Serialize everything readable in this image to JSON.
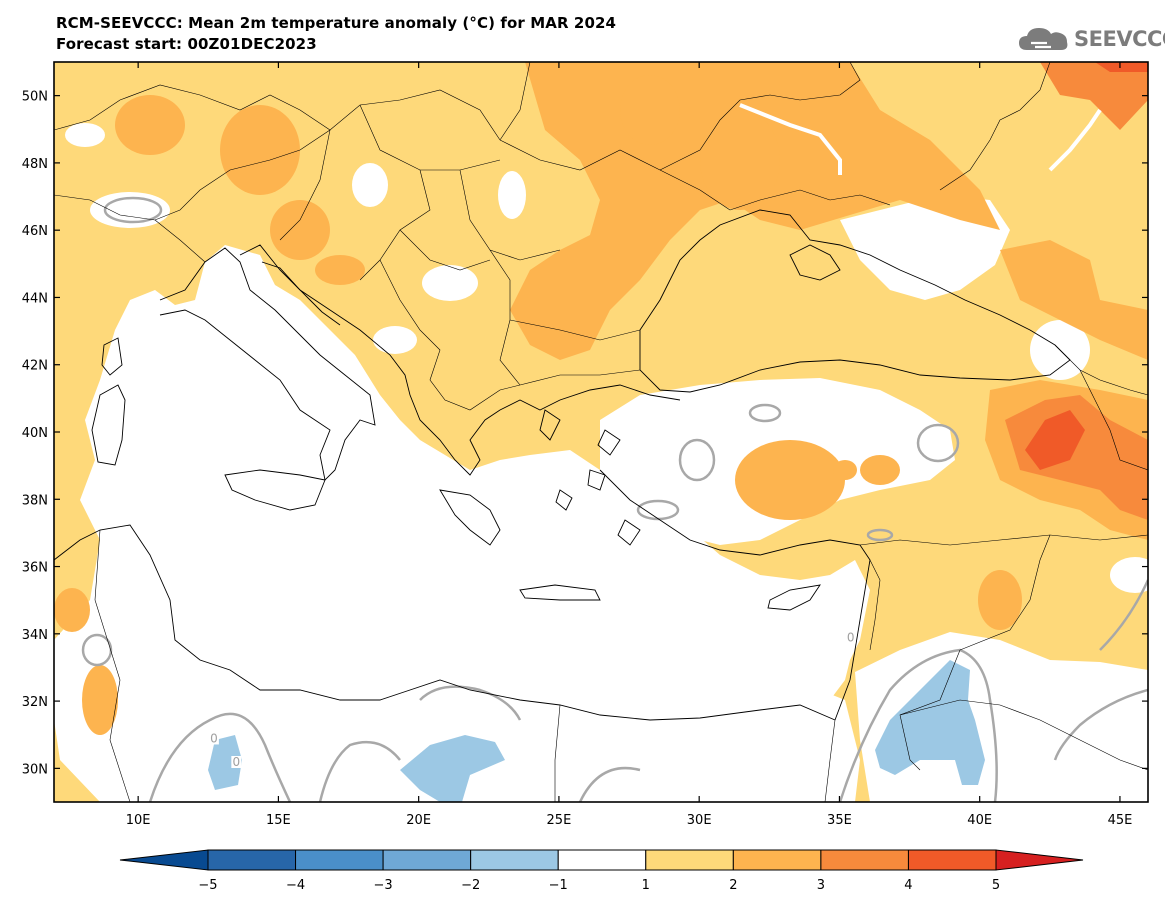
{
  "header": {
    "title_line1": "RCM-SEEVCCC: Mean 2m temperature anomaly (°C) for MAR 2024",
    "title_line2": "Forecast start: 00Z01DEC2023"
  },
  "logo": {
    "text": "SEEVCCC",
    "icon": "cloud-icon"
  },
  "map": {
    "lon_range": [
      7,
      46
    ],
    "lat_range": [
      29,
      51
    ],
    "lat_ticks": [
      {
        "value": 50,
        "label": "50N"
      },
      {
        "value": 48,
        "label": "48N"
      },
      {
        "value": 46,
        "label": "46N"
      },
      {
        "value": 44,
        "label": "44N"
      },
      {
        "value": 42,
        "label": "42N"
      },
      {
        "value": 40,
        "label": "40N"
      },
      {
        "value": 38,
        "label": "38N"
      },
      {
        "value": 36,
        "label": "36N"
      },
      {
        "value": 34,
        "label": "34N"
      },
      {
        "value": 32,
        "label": "32N"
      },
      {
        "value": 30,
        "label": "30N"
      }
    ],
    "lon_ticks": [
      {
        "value": 10,
        "label": "10E"
      },
      {
        "value": 15,
        "label": "15E"
      },
      {
        "value": 20,
        "label": "20E"
      },
      {
        "value": 25,
        "label": "25E"
      },
      {
        "value": 30,
        "label": "30E"
      },
      {
        "value": 35,
        "label": "35E"
      },
      {
        "value": 40,
        "label": "40E"
      },
      {
        "value": 45,
        "label": "45E"
      }
    ],
    "contour_labels": [
      {
        "text": "0",
        "lon": 35.4,
        "lat": 33.8
      },
      {
        "text": "0",
        "lon": 12.7,
        "lat": 30.8
      },
      {
        "text": "0",
        "lon": 13.5,
        "lat": 30.1
      }
    ]
  },
  "colorbar": {
    "labels": [
      "−5",
      "−4",
      "−3",
      "−2",
      "−1",
      "1",
      "2",
      "3",
      "4",
      "5"
    ],
    "colors": [
      "#084a91",
      "#2766a9",
      "#4a8fc9",
      "#6fa8d6",
      "#9cc8e4",
      "#ffffff",
      "#fed97a",
      "#fdb44f",
      "#f78a3c",
      "#f05a28",
      "#d62020"
    ]
  }
}
